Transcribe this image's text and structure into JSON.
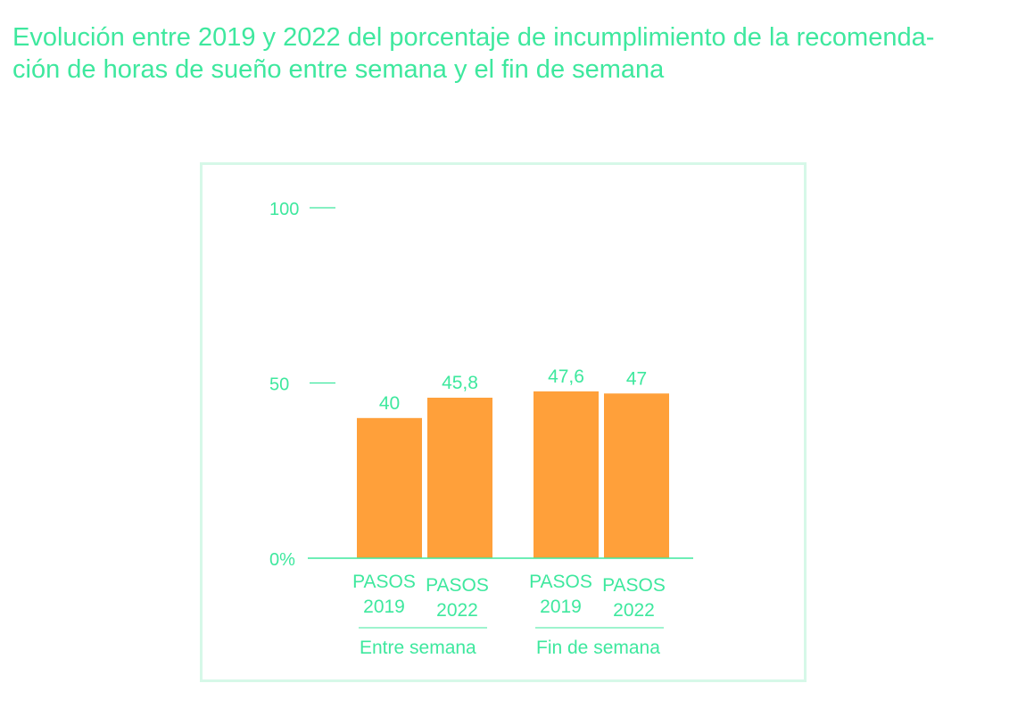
{
  "title": "Evolución entre 2019 y 2022 del porcentaje de incumplimiento de la recomenda-ción de horas de sueño entre semana y el fin de semana",
  "title_lines": [
    "Evolución entre 2019 y 2022 del porcentaje de incumplimiento de la recomenda-",
    "ción de horas de sueño entre semana y el fin de semana"
  ],
  "colors": {
    "text": "#3ee89e",
    "bar": "#ffa03a",
    "frame": "#d6f8e8"
  },
  "chart_data": {
    "type": "bar",
    "title": "Evolución entre 2019 y 2022 del porcentaje de incumplimiento de la recomendación de horas de sueño entre semana y el fin de semana",
    "groups": [
      {
        "label": "Entre semana",
        "bars": [
          {
            "label": [
              "PASOS",
              "2019"
            ],
            "value": 40,
            "value_label": "40"
          },
          {
            "label": [
              "PASOS",
              "2022"
            ],
            "value": 45.8,
            "value_label": "45,8"
          }
        ]
      },
      {
        "label": "Fin de semana",
        "bars": [
          {
            "label": [
              "PASOS",
              "2019"
            ],
            "value": 47.6,
            "value_label": "47,6"
          },
          {
            "label": [
              "PASOS",
              "2022"
            ],
            "value": 47,
            "value_label": "47"
          }
        ]
      }
    ],
    "yticks": [
      {
        "value": 0,
        "label": "0%"
      },
      {
        "value": 50,
        "label": "50"
      },
      {
        "value": 100,
        "label": "100"
      }
    ],
    "ylim": [
      0,
      100
    ],
    "grid": false,
    "xlabel": "",
    "ylabel": ""
  }
}
